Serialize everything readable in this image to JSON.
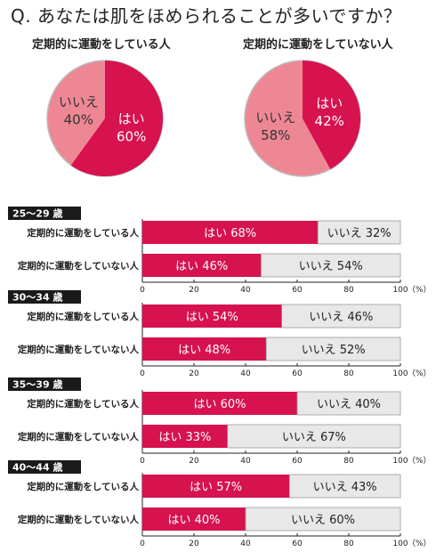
{
  "question": "Q. あなたは肌をほめられることが多いですか？",
  "colors": {
    "yes": "#d6124f",
    "no_pie": "#ee8794",
    "no_bar": "#e8e8e8",
    "age_box": "#1a1a1a",
    "pie_no_stroke": "#bdbdbd"
  },
  "chart_data": [
    {
      "type": "pie",
      "title": "定期的に運動をしている人",
      "slices": [
        {
          "label": "はい",
          "value": 60
        },
        {
          "label": "いいえ",
          "value": 40
        }
      ]
    },
    {
      "type": "pie",
      "title": "定期的に運動をしていない人",
      "slices": [
        {
          "label": "はい",
          "value": 42
        },
        {
          "label": "いいえ",
          "value": 58
        }
      ]
    },
    {
      "type": "bar",
      "orientation": "horizontal-stacked",
      "xlim": [
        0,
        100
      ],
      "ticks": [
        "0",
        "20",
        "40",
        "60",
        "80",
        "100"
      ],
      "unit": "（%）",
      "segment_labels": {
        "yes": "はい",
        "no": "いいえ"
      },
      "groups": [
        {
          "age": "25～29 歳",
          "rows": [
            {
              "label": "定期的に運動をしている人",
              "yes": 68,
              "no": 32
            },
            {
              "label": "定期的に運動をしていない人",
              "yes": 46,
              "no": 54
            }
          ]
        },
        {
          "age": "30～34 歳",
          "rows": [
            {
              "label": "定期的に運動をしている人",
              "yes": 54,
              "no": 46
            },
            {
              "label": "定期的に運動をしていない人",
              "yes": 48,
              "no": 52
            }
          ]
        },
        {
          "age": "35～39 歳",
          "rows": [
            {
              "label": "定期的に運動をしている人",
              "yes": 60,
              "no": 40
            },
            {
              "label": "定期的に運動をしていない人",
              "yes": 33,
              "no": 67
            }
          ]
        },
        {
          "age": "40～44 歳",
          "rows": [
            {
              "label": "定期的に運動をしている人",
              "yes": 57,
              "no": 43
            },
            {
              "label": "定期的に運動をしていない人",
              "yes": 40,
              "no": 60
            }
          ]
        }
      ]
    }
  ]
}
